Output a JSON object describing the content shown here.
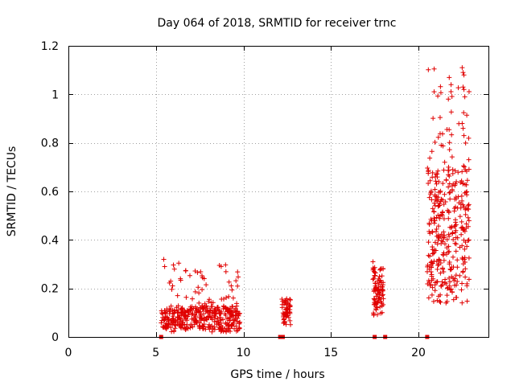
{
  "chart_data": {
    "type": "scatter",
    "title": "Day 064 of 2018, SRMTID for receiver trnc",
    "xlabel": "GPS time / hours",
    "ylabel": "SRMTID / TECUs",
    "xlim": [
      0,
      24
    ],
    "ylim": [
      0,
      1.2
    ],
    "x_ticks": [
      0,
      5,
      10,
      15,
      20
    ],
    "x_tick_labels": [
      "0",
      "5",
      "10",
      "15",
      "20"
    ],
    "y_ticks": [
      0,
      0.2,
      0.4,
      0.6,
      0.8,
      1.0,
      1.2
    ],
    "y_tick_labels": [
      "0",
      "0.2",
      "0.4",
      "0.6",
      "0.8",
      "1",
      "1.2"
    ],
    "grid": true,
    "marker": "plus",
    "color": "#e00000",
    "clusters": [
      {
        "x_range": [
          5.3,
          9.8
        ],
        "y_range": [
          0.02,
          0.32
        ],
        "count": 420,
        "typical": 0.08
      },
      {
        "x_range": [
          12.2,
          12.7
        ],
        "y_range": [
          0.05,
          0.17
        ],
        "count": 60,
        "typical": 0.11
      },
      {
        "x_range": [
          17.4,
          18.0
        ],
        "y_range": [
          0.09,
          0.31
        ],
        "count": 90,
        "typical": 0.2
      },
      {
        "x_range": [
          20.5,
          22.9
        ],
        "y_range": [
          0.14,
          1.11
        ],
        "count": 360,
        "typical": 0.45
      }
    ],
    "highlight_points": [
      {
        "x": 5.45,
        "y": 0.32
      },
      {
        "x": 5.5,
        "y": 0.29
      },
      {
        "x": 6.4,
        "y": 0.24
      },
      {
        "x": 17.4,
        "y": 0.31
      },
      {
        "x": 17.45,
        "y": 0.28
      },
      {
        "x": 21.3,
        "y": 0.79
      },
      {
        "x": 21.5,
        "y": 0.72
      },
      {
        "x": 22.5,
        "y": 1.11
      },
      {
        "x": 22.55,
        "y": 1.09
      },
      {
        "x": 22.6,
        "y": 1.08
      },
      {
        "x": 22.55,
        "y": 1.03
      },
      {
        "x": 22.6,
        "y": 1.02
      },
      {
        "x": 22.65,
        "y": 0.99
      },
      {
        "x": 22.5,
        "y": 0.88
      },
      {
        "x": 22.55,
        "y": 0.86
      },
      {
        "x": 22.6,
        "y": 0.83
      }
    ],
    "zero_points": [
      {
        "x": 5.3,
        "y": 0
      },
      {
        "x": 12.1,
        "y": 0
      },
      {
        "x": 12.25,
        "y": 0
      },
      {
        "x": 17.5,
        "y": 0
      },
      {
        "x": 18.1,
        "y": 0
      },
      {
        "x": 20.5,
        "y": 0
      }
    ]
  }
}
